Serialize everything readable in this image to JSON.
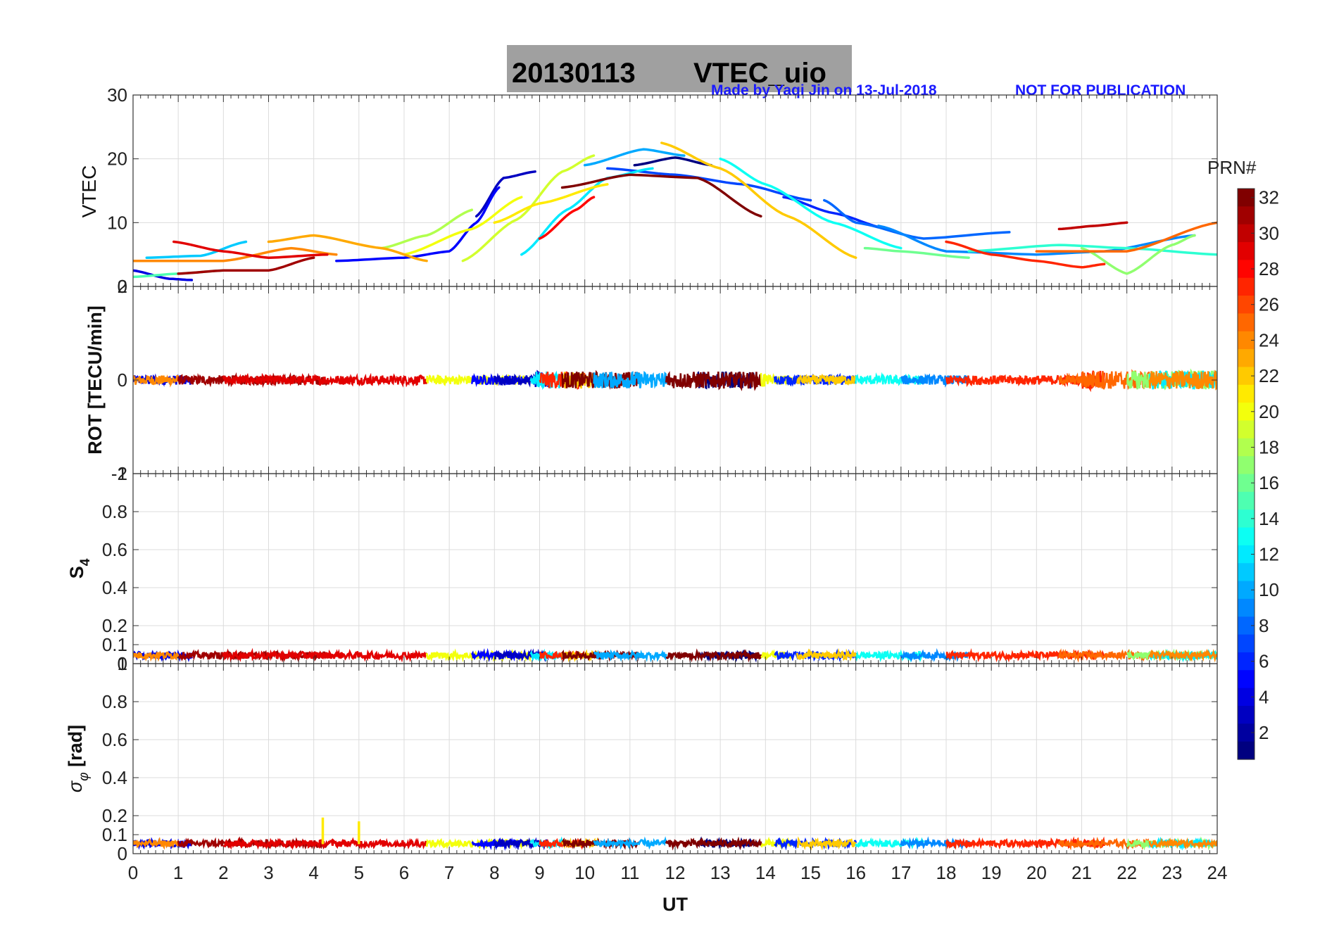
{
  "chart_data": {
    "type": "line",
    "title_date": "20130113",
    "title_label": "VTEC_uio",
    "credit": "Made by Yaqi Jin on 13-Jul-2018",
    "notice": "NOT FOR PUBLICATION",
    "xlabel": "UT",
    "xlim": [
      0,
      24
    ],
    "x_ticks": [
      "0",
      "1",
      "2",
      "3",
      "4",
      "5",
      "6",
      "7",
      "8",
      "9",
      "10",
      "11",
      "12",
      "13",
      "14",
      "15",
      "16",
      "17",
      "18",
      "19",
      "20",
      "21",
      "22",
      "23",
      "24"
    ],
    "colorbar": {
      "title": "PRN#",
      "range": [
        1,
        32
      ],
      "ticks": [
        "2",
        "4",
        "6",
        "8",
        "10",
        "12",
        "14",
        "16",
        "18",
        "20",
        "22",
        "24",
        "26",
        "28",
        "30",
        "32"
      ]
    },
    "panels": [
      {
        "id": "vtec",
        "ylabel": "VTEC",
        "ylim": [
          0,
          30
        ],
        "y_ticks": [
          "10",
          "20",
          "30"
        ],
        "bottom_tick": "0",
        "series": [
          {
            "prn": 1,
            "x": [
              11.1,
              12.0,
              12.8
            ],
            "y": [
              19.0,
              20.2,
              19.0
            ]
          },
          {
            "prn": 3,
            "x": [
              7.6,
              8.2,
              8.9
            ],
            "y": [
              11.0,
              17.0,
              18.0
            ]
          },
          {
            "prn": 4,
            "x": [
              0.0,
              0.8,
              1.3
            ],
            "y": [
              2.5,
              1.2,
              1.0
            ]
          },
          {
            "prn": 5,
            "x": [
              4.5,
              6.0,
              7.0,
              7.6,
              8.1
            ],
            "y": [
              4.0,
              4.5,
              5.5,
              10.0,
              15.5
            ]
          },
          {
            "prn": 6,
            "x": [
              14.4,
              15.5,
              16.7
            ],
            "y": [
              14.0,
              11.5,
              9.0
            ]
          },
          {
            "prn": 7,
            "x": [
              10.5,
              12.0,
              13.5,
              15.0
            ],
            "y": [
              18.5,
              17.5,
              16.0,
              13.5
            ]
          },
          {
            "prn": 8,
            "x": [
              15.3,
              16.0,
              17.5,
              19.4
            ],
            "y": [
              13.5,
              10.0,
              7.5,
              8.5
            ]
          },
          {
            "prn": 9,
            "x": [
              16.5,
              18.0,
              20.0,
              21.5,
              23.5
            ],
            "y": [
              9.5,
              5.5,
              5.0,
              5.5,
              8.0
            ]
          },
          {
            "prn": 10,
            "x": [
              10.0,
              11.3,
              12.2
            ],
            "y": [
              19.0,
              21.5,
              20.5
            ]
          },
          {
            "prn": 11,
            "x": [
              0.3,
              1.5,
              2.5
            ],
            "y": [
              4.5,
              4.8,
              7.0
            ]
          },
          {
            "prn": 12,
            "x": [
              8.6,
              9.6,
              10.5,
              11.5
            ],
            "y": [
              5.0,
              12.0,
              17.0,
              18.5
            ]
          },
          {
            "prn": 13,
            "x": [
              13.0,
              14.0,
              15.5,
              17.0
            ],
            "y": [
              20.0,
              16.0,
              10.0,
              6.0
            ]
          },
          {
            "prn": 14,
            "x": [
              18.5,
              20.5,
              22.0,
              24.0
            ],
            "y": [
              5.5,
              6.5,
              6.0,
              5.0
            ]
          },
          {
            "prn": 15,
            "x": [
              0.0,
              1.0,
              2.0
            ],
            "y": [
              1.5,
              2.0,
              2.5
            ]
          },
          {
            "prn": 16,
            "x": [
              16.2,
              17.0,
              18.5
            ],
            "y": [
              6.0,
              5.5,
              4.5
            ]
          },
          {
            "prn": 17,
            "x": [
              21.0,
              22.0,
              23.0,
              23.5
            ],
            "y": [
              6.0,
              2.0,
              6.5,
              8.0
            ]
          },
          {
            "prn": 18,
            "x": [
              5.5,
              6.5,
              7.5
            ],
            "y": [
              6.0,
              8.0,
              12.0
            ]
          },
          {
            "prn": 19,
            "x": [
              7.3,
              8.5,
              9.5,
              10.2
            ],
            "y": [
              4.0,
              10.5,
              18.0,
              20.5
            ]
          },
          {
            "prn": 20,
            "x": [
              6.0,
              7.5,
              8.6
            ],
            "y": [
              5.0,
              9.0,
              14.0
            ]
          },
          {
            "prn": 21,
            "x": [
              8.0,
              9.0,
              10.5
            ],
            "y": [
              10.0,
              13.0,
              16.0
            ]
          },
          {
            "prn": 22,
            "x": [
              11.7,
              13.0,
              14.5,
              16.0
            ],
            "y": [
              22.5,
              18.5,
              11.0,
              4.5
            ]
          },
          {
            "prn": 23,
            "x": [
              3.0,
              4.0,
              5.5,
              6.5
            ],
            "y": [
              7.0,
              8.0,
              6.0,
              4.0
            ]
          },
          {
            "prn": 24,
            "x": [
              0.0,
              2.0,
              3.5,
              4.5
            ],
            "y": [
              4.0,
              4.0,
              6.0,
              5.0
            ]
          },
          {
            "prn": 25,
            "x": [
              20.0,
              22.0,
              24.0
            ],
            "y": [
              5.5,
              5.5,
              10.0
            ]
          },
          {
            "prn": 27,
            "x": [
              18.0,
              19.0,
              20.0,
              21.0,
              21.5
            ],
            "y": [
              7.0,
              5.0,
              4.0,
              3.0,
              3.5
            ]
          },
          {
            "prn": 28,
            "x": [
              9.0,
              9.8,
              10.2
            ],
            "y": [
              7.5,
              12.0,
              14.0
            ]
          },
          {
            "prn": 29,
            "x": [
              0.9,
              2.0,
              3.0,
              4.3
            ],
            "y": [
              7.0,
              5.5,
              4.5,
              5.0
            ]
          },
          {
            "prn": 30,
            "x": [
              20.5,
              21.3,
              22.0
            ],
            "y": [
              9.0,
              9.5,
              10.0
            ]
          },
          {
            "prn": 31,
            "x": [
              1.0,
              2.0,
              3.0,
              4.0
            ],
            "y": [
              2.0,
              2.5,
              2.5,
              4.5
            ]
          },
          {
            "prn": 32,
            "x": [
              9.5,
              11.0,
              12.5,
              13.9
            ],
            "y": [
              15.5,
              17.5,
              17.0,
              11.0
            ]
          }
        ]
      },
      {
        "id": "rot",
        "ylabel": "ROT [TECU/min]",
        "ylim": [
          -2,
          2
        ],
        "y_ticks": [
          "0"
        ],
        "top_tick": "2",
        "bottom_tick": "-2",
        "noise_level": 0.1,
        "segments": [
          {
            "prn": 4,
            "x0": 0.0,
            "x1": 1.3
          },
          {
            "prn": 24,
            "x0": 0.0,
            "x1": 1.0
          },
          {
            "prn": 31,
            "x0": 1.0,
            "x1": 4.3
          },
          {
            "prn": 29,
            "x0": 2.0,
            "x1": 6.5
          },
          {
            "prn": 20,
            "x0": 6.5,
            "x1": 8.8
          },
          {
            "prn": 5,
            "x0": 7.5,
            "x1": 8.6
          },
          {
            "prn": 3,
            "x0": 8.0,
            "x1": 9.2
          },
          {
            "prn": 12,
            "x0": 8.8,
            "x1": 9.5
          },
          {
            "prn": 27,
            "x0": 9.0,
            "x1": 10.0
          },
          {
            "prn": 22,
            "x0": 9.5,
            "x1": 10.3
          },
          {
            "prn": 32,
            "x0": 9.5,
            "x1": 11.2
          },
          {
            "prn": 10,
            "x0": 10.2,
            "x1": 11.8
          },
          {
            "prn": 1,
            "x0": 12.5,
            "x1": 13.8
          },
          {
            "prn": 32,
            "x0": 11.8,
            "x1": 13.9
          },
          {
            "prn": 20,
            "x0": 13.9,
            "x1": 14.6
          },
          {
            "prn": 6,
            "x0": 14.2,
            "x1": 16.0
          },
          {
            "prn": 22,
            "x0": 14.7,
            "x1": 16.0
          },
          {
            "prn": 13,
            "x0": 16.0,
            "x1": 17.5
          },
          {
            "prn": 9,
            "x0": 17.0,
            "x1": 18.5
          },
          {
            "prn": 27,
            "x0": 18.0,
            "x1": 21.5
          },
          {
            "prn": 25,
            "x0": 20.5,
            "x1": 22.5
          },
          {
            "prn": 17,
            "x0": 22.0,
            "x1": 24.0
          },
          {
            "prn": 12,
            "x0": 22.5,
            "x1": 24.0
          },
          {
            "prn": 24,
            "x0": 22.5,
            "x1": 24.0
          }
        ]
      },
      {
        "id": "s4",
        "ylabel": "S4",
        "ylim": [
          0,
          1
        ],
        "y_ticks": [
          "0.1",
          "0.2",
          "0.4",
          "0.6",
          "0.8",
          "1"
        ],
        "bottom_tick": "0",
        "baseline": 0.04
      },
      {
        "id": "sigphi",
        "ylabel": "σφ [rad]",
        "ylim": [
          0,
          1
        ],
        "y_ticks": [
          "0.1",
          "0.2",
          "0.4",
          "0.6",
          "0.8",
          "1"
        ],
        "bottom_tick": "0",
        "baseline": 0.05,
        "spikes": [
          {
            "prn": 21,
            "x": 4.2,
            "y": 0.19
          },
          {
            "prn": 21,
            "x": 5.0,
            "y": 0.17
          }
        ]
      }
    ]
  }
}
